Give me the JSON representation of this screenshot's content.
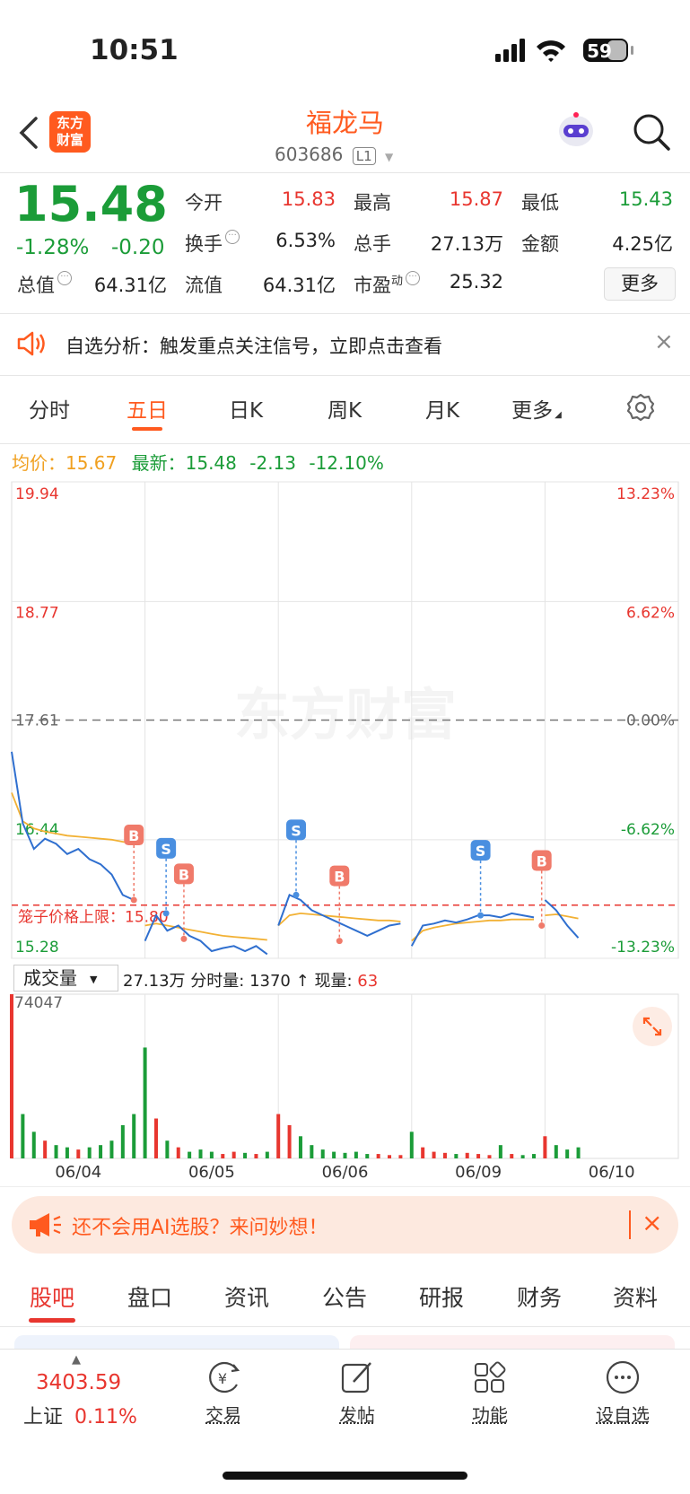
{
  "status_bar": {
    "time": "10:51",
    "battery": "59"
  },
  "header": {
    "logo": [
      "东方",
      "财富"
    ],
    "title": "福龙马",
    "code": "603686",
    "level": "L1"
  },
  "quote": {
    "price": "15.48",
    "change_pct": "-1.28%",
    "change": "-0.20",
    "fields": [
      {
        "label": "今开",
        "value": "15.83",
        "color": "#e8362f"
      },
      {
        "label": "最高",
        "value": "15.87",
        "color": "#e8362f"
      },
      {
        "label": "最低",
        "value": "15.43",
        "color": "#1b9c38"
      },
      {
        "label": "换手",
        "value": "6.53%",
        "icon": true
      },
      {
        "label": "总手",
        "value": "27.13万"
      },
      {
        "label": "金额",
        "value": "4.25亿"
      }
    ],
    "fields_bottom": [
      {
        "label": "总值",
        "value": "64.31亿",
        "icon": true
      },
      {
        "label": "流值",
        "value": "64.31亿"
      },
      {
        "label": "市盈",
        "sup": "动",
        "value": "25.32",
        "icon": true
      }
    ],
    "more": "更多"
  },
  "notice": {
    "text": "自选分析：触发重点关注信号，立即点击查看"
  },
  "tabs": {
    "items": [
      "分时",
      "五日",
      "日K",
      "周K",
      "月K",
      "更多"
    ],
    "active": 1
  },
  "chart_info": {
    "avg_label": "均价：",
    "avg": "15.67",
    "last_label": "最新：",
    "last": "15.48",
    "change": "-2.13",
    "change_pct": "-12.10%"
  },
  "watermark": "东方财富",
  "volume_info": {
    "selector": "成交量",
    "total": "27.13万",
    "minute_label": "分时量:",
    "minute": "1370",
    "arrow": "↑",
    "current_label": "现量:",
    "current": "63"
  },
  "chart_data": [
    {
      "type": "line",
      "x": [
        0,
        1,
        2,
        3,
        4,
        5,
        6,
        7,
        8,
        9,
        10,
        11,
        12,
        13,
        14,
        15,
        16,
        17,
        18,
        19,
        20,
        21,
        22,
        23,
        24,
        25,
        26,
        27,
        28,
        29,
        30,
        31,
        32,
        33,
        34,
        35,
        36,
        37,
        38,
        39,
        40,
        41,
        42,
        43,
        44,
        45,
        46,
        47,
        48,
        49,
        50,
        51
      ],
      "xlim": [
        0,
        60
      ],
      "xgrid": [
        12,
        24,
        36,
        48
      ],
      "xticks": [
        {
          "value": 6,
          "label": "06/04"
        },
        {
          "value": 18,
          "label": "06/05"
        },
        {
          "value": 30,
          "label": "06/06"
        },
        {
          "value": 42,
          "label": "06/09"
        },
        {
          "value": 54,
          "label": "06/10"
        }
      ],
      "ylim": [
        15.28,
        19.94
      ],
      "yticks": [
        19.94,
        18.77,
        17.61,
        16.44,
        15.28
      ],
      "y2lim": [
        -13.23,
        13.23
      ],
      "y2ticks": [
        {
          "value": 13.23,
          "label": "13.23%"
        },
        {
          "value": 6.62,
          "label": "6.62%"
        },
        {
          "value": 0,
          "label": "0.00%"
        },
        {
          "value": -6.62,
          "label": "-6.62%"
        },
        {
          "value": -13.23,
          "label": "-13.23%"
        }
      ],
      "series": [
        {
          "color": "#2f6fcf",
          "values": [
            17.3,
            16.6,
            16.35,
            16.45,
            16.4,
            16.3,
            16.35,
            16.25,
            16.2,
            16.1,
            15.9,
            15.85,
            15.45,
            15.7,
            15.55,
            15.6,
            15.5,
            15.45,
            15.35,
            15.38,
            15.4,
            15.35,
            15.4,
            15.32,
            15.6,
            15.9,
            15.85,
            15.75,
            15.7,
            15.65,
            15.6,
            15.55,
            15.5,
            15.55,
            15.6,
            15.62,
            15.4,
            15.6,
            15.62,
            15.65,
            15.63,
            15.66,
            15.7,
            15.7,
            15.68,
            15.72,
            15.7,
            15.68,
            15.85,
            15.75,
            15.6,
            15.48
          ]
        },
        {
          "color": "#f2b134",
          "values": [
            16.9,
            16.62,
            16.55,
            16.52,
            16.5,
            16.48,
            16.47,
            16.46,
            16.45,
            16.44,
            16.42,
            16.4,
            15.6,
            15.62,
            15.6,
            15.58,
            15.56,
            15.54,
            15.52,
            15.5,
            15.49,
            15.48,
            15.47,
            15.46,
            15.6,
            15.7,
            15.72,
            15.71,
            15.7,
            15.69,
            15.68,
            15.67,
            15.66,
            15.65,
            15.65,
            15.64,
            15.45,
            15.55,
            15.58,
            15.6,
            15.62,
            15.63,
            15.64,
            15.65,
            15.65,
            15.66,
            15.66,
            15.66,
            15.7,
            15.71,
            15.69,
            15.67
          ]
        }
      ],
      "reference_line": {
        "label": "笼子价格上限：",
        "value": {
          "value": 15.8,
          "label": "15.80"
        },
        "color": "#e8362f"
      },
      "markers": [
        {
          "label": "B",
          "x": 11,
          "y": 15.85,
          "color": "#f07a6a"
        },
        {
          "label": "S",
          "x": 13.9,
          "y": 15.72,
          "color": "#4a8fe0"
        },
        {
          "label": "B",
          "x": 15.5,
          "y": 15.47,
          "color": "#f07a6a"
        },
        {
          "label": "S",
          "x": 25.6,
          "y": 15.9,
          "color": "#4a8fe0"
        },
        {
          "label": "B",
          "x": 29.5,
          "y": 15.45,
          "color": "#f07a6a"
        },
        {
          "label": "S",
          "x": 42.2,
          "y": 15.7,
          "color": "#4a8fe0"
        },
        {
          "label": "B",
          "x": 47.7,
          "y": 15.6,
          "color": "#f07a6a"
        }
      ]
    },
    {
      "type": "bar",
      "x": [
        0,
        1,
        2,
        3,
        4,
        5,
        6,
        7,
        8,
        9,
        10,
        11,
        12,
        13,
        14,
        15,
        16,
        17,
        18,
        19,
        20,
        21,
        22,
        23,
        24,
        25,
        26,
        27,
        28,
        29,
        30,
        31,
        32,
        33,
        34,
        35,
        36,
        37,
        38,
        39,
        40,
        41,
        42,
        43,
        44,
        45,
        46,
        47,
        48,
        49,
        50,
        51
      ],
      "xlim": [
        0,
        60
      ],
      "ylim": [
        0,
        74047
      ],
      "yticks": [
        74047
      ],
      "up_color": "#e8362f",
      "down_color": "#1b9c38",
      "values": [
        74047,
        20000,
        12000,
        8000,
        6000,
        5000,
        4000,
        5000,
        6000,
        8000,
        15000,
        20000,
        50000,
        18000,
        8000,
        5000,
        3000,
        4000,
        3000,
        2000,
        3000,
        2500,
        2000,
        3000,
        20000,
        15000,
        10000,
        6000,
        4000,
        3000,
        2500,
        3000,
        2000,
        2000,
        1500,
        1500,
        12000,
        5000,
        3000,
        2500,
        2000,
        2500,
        2000,
        1500,
        6000,
        2000,
        1500,
        2000,
        10000,
        6000,
        4000,
        5000
      ]
    }
  ],
  "ad": {
    "text": "还不会用AI选股？来问妙想！"
  },
  "sub_tabs": {
    "items": [
      "股吧",
      "盘口",
      "资讯",
      "公告",
      "研报",
      "财务",
      "资料"
    ],
    "active": 0
  },
  "bottom_nav": {
    "index_value": "3403.59",
    "index_name": "上证",
    "index_change": "0.11%",
    "items": [
      "交易",
      "发帖",
      "功能",
      "设自选"
    ]
  }
}
